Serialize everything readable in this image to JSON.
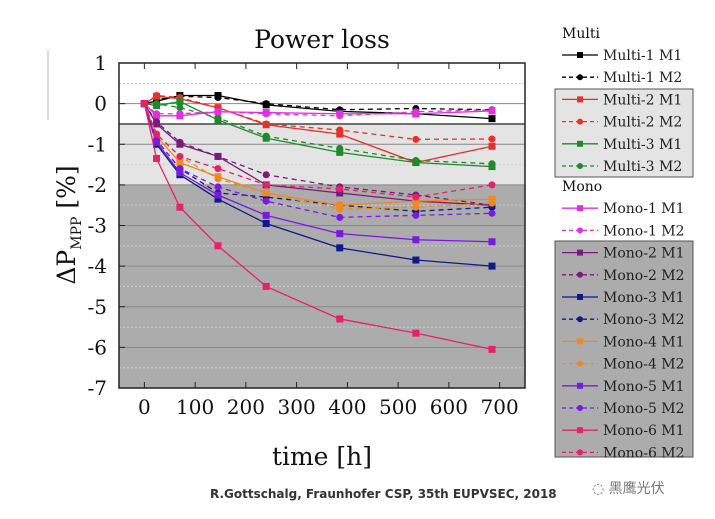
{
  "chart_data": {
    "type": "line",
    "title": "Power loss",
    "xlabel": "time [h]",
    "ylabel": "ΔP",
    "ylabel_sub": "MPP",
    "ylabel_unit": "[%]",
    "xlim": [
      -50,
      750
    ],
    "ylim": [
      -7,
      1
    ],
    "xticks": [
      0,
      100,
      200,
      300,
      400,
      500,
      600,
      700
    ],
    "yticks": [
      1,
      0,
      -1,
      -2,
      -3,
      -4,
      -5,
      -6,
      -7
    ],
    "bands": [
      {
        "from": 1,
        "to": -0.5,
        "color": "#ffffff"
      },
      {
        "from": -0.5,
        "to": -2,
        "color": "#e4e4e4"
      },
      {
        "from": -2,
        "to": -7,
        "color": "#acacac"
      }
    ],
    "x": [
      0,
      24,
      70,
      145,
      240,
      385,
      535,
      685
    ],
    "legend_groups": [
      "Multi",
      "Mono"
    ],
    "series": [
      {
        "name": "Multi-1 M1",
        "group": "Multi",
        "color": "#000000",
        "dash": false,
        "marker": "square",
        "values": [
          0,
          0.06,
          0.2,
          0.2,
          -0.03,
          -0.19,
          -0.25,
          -0.37
        ]
      },
      {
        "name": "Multi-1 M2",
        "group": "Multi",
        "color": "#000000",
        "dash": true,
        "marker": "circle",
        "values": [
          0,
          0.1,
          0.18,
          0.15,
          0,
          -0.15,
          -0.12,
          -0.15
        ]
      },
      {
        "name": "Multi-2 M1",
        "group": "Multi",
        "color": "#e8302a",
        "dash": false,
        "marker": "square",
        "values": [
          0,
          0.18,
          0.12,
          -0.1,
          -0.52,
          -0.75,
          -1.45,
          -1.05
        ]
      },
      {
        "name": "Multi-2 M2",
        "group": "Multi",
        "color": "#e8302a",
        "dash": true,
        "marker": "circle",
        "values": [
          0,
          0.2,
          0.15,
          -0.1,
          -0.5,
          -0.65,
          -0.88,
          -0.87
        ]
      },
      {
        "name": "Multi-3 M1",
        "group": "Multi",
        "color": "#1f8a2a",
        "dash": false,
        "marker": "square",
        "values": [
          0,
          -0.05,
          0.05,
          -0.4,
          -0.85,
          -1.2,
          -1.45,
          -1.55
        ]
      },
      {
        "name": "Multi-3 M2",
        "group": "Multi",
        "color": "#1f8a2a",
        "dash": true,
        "marker": "circle",
        "values": [
          0,
          0,
          -0.1,
          -0.35,
          -0.8,
          -1.1,
          -1.4,
          -1.48
        ]
      },
      {
        "name": "Mono-1 M1",
        "group": "Mono",
        "color": "#e030e0",
        "dash": false,
        "marker": "square",
        "values": [
          0,
          -0.3,
          -0.3,
          -0.2,
          -0.22,
          -0.25,
          -0.25,
          -0.18
        ]
      },
      {
        "name": "Mono-1 M2",
        "group": "Mono",
        "color": "#e030e0",
        "dash": true,
        "marker": "circle",
        "values": [
          0,
          -0.25,
          -0.25,
          -0.2,
          -0.25,
          -0.3,
          -0.2,
          -0.15
        ]
      },
      {
        "name": "Mono-2 M1",
        "group": "Mono",
        "color": "#7a1a7a",
        "dash": false,
        "marker": "square",
        "values": [
          0,
          -0.5,
          -1.0,
          -1.3,
          -2.0,
          -2.2,
          -2.4,
          -2.5
        ]
      },
      {
        "name": "Mono-2 M2",
        "group": "Mono",
        "color": "#7a1a7a",
        "dash": true,
        "marker": "circle",
        "values": [
          0,
          -0.45,
          -0.95,
          -1.3,
          -1.75,
          -2.05,
          -2.25,
          -2.5
        ]
      },
      {
        "name": "Mono-3 M1",
        "group": "Mono",
        "color": "#0c1a8a",
        "dash": false,
        "marker": "square",
        "values": [
          0,
          -1.0,
          -1.75,
          -2.35,
          -2.95,
          -3.55,
          -3.85,
          -4.0
        ]
      },
      {
        "name": "Mono-3 M2",
        "group": "Mono",
        "color": "#0c1a8a",
        "dash": true,
        "marker": "circle",
        "values": [
          0,
          -0.9,
          -1.6,
          -2.2,
          -2.3,
          -2.5,
          -2.65,
          -2.55
        ]
      },
      {
        "name": "Mono-4 M1",
        "group": "Mono",
        "color": "#f08a20",
        "dash": false,
        "marker": "square",
        "values": [
          0,
          -0.8,
          -1.45,
          -1.8,
          -2.2,
          -2.5,
          -2.4,
          -2.35
        ]
      },
      {
        "name": "Mono-4 M2",
        "group": "Mono",
        "color": "#f08a20",
        "dash": true,
        "marker": "circle",
        "values": [
          0,
          -0.75,
          -1.3,
          -1.85,
          -2.2,
          -2.6,
          -2.55,
          -2.45
        ]
      },
      {
        "name": "Mono-5 M1",
        "group": "Mono",
        "color": "#7a1ae0",
        "dash": false,
        "marker": "square",
        "values": [
          0,
          -0.95,
          -1.7,
          -2.25,
          -2.75,
          -3.2,
          -3.35,
          -3.4
        ]
      },
      {
        "name": "Mono-5 M2",
        "group": "Mono",
        "color": "#7a1ae0",
        "dash": true,
        "marker": "circle",
        "values": [
          0,
          -0.9,
          -1.6,
          -2.05,
          -2.4,
          -2.8,
          -2.75,
          -2.7
        ]
      },
      {
        "name": "Mono-6 M1",
        "group": "Mono",
        "color": "#e8206a",
        "dash": false,
        "marker": "square",
        "values": [
          0,
          -1.35,
          -2.55,
          -3.5,
          -4.5,
          -5.3,
          -5.65,
          -6.05
        ]
      },
      {
        "name": "Mono-6 M2",
        "group": "Mono",
        "color": "#e8206a",
        "dash": true,
        "marker": "circle",
        "values": [
          0,
          -0.75,
          -1.3,
          -1.6,
          -2.0,
          -2.1,
          -2.3,
          -2.0
        ]
      }
    ]
  },
  "footer": {
    "credit": "R.Gottschalg, Fraunhofer CSP, 35th EUPVSEC, 2018",
    "watermark": "黑鹰光伏"
  }
}
